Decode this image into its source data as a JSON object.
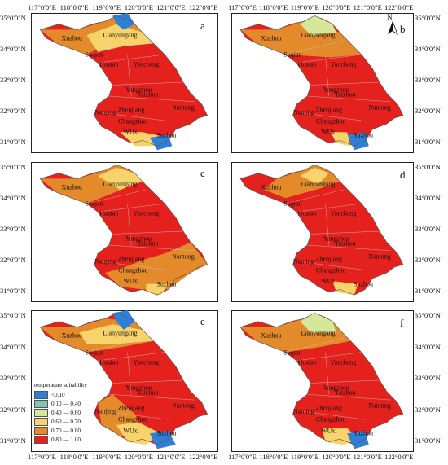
{
  "panels": [
    {
      "label": "a"
    },
    {
      "label": "b"
    },
    {
      "label": "c"
    },
    {
      "label": "d"
    },
    {
      "label": "e"
    },
    {
      "label": "f"
    }
  ],
  "lon_ticks": [
    "117°0'0\"E",
    "118°0'0\"E",
    "119°0'0\"E",
    "120°0'0\"E",
    "121°0'0\"E",
    "122°0'0\"E"
  ],
  "lat_ticks": [
    "35°0'0\"N",
    "34°0'0\"N",
    "33°0'0\"N",
    "32°0'0\"N",
    "31°0'0\"N"
  ],
  "cities": [
    "Xuzhou",
    "Lianyungang",
    "Suqian",
    "Huaian",
    "Yancheng",
    "Yangzhou",
    "Taizhou",
    "Nantong",
    "Nanjing",
    "Zhenjiang",
    "Changzhou",
    "WUxi",
    "Suzhou"
  ],
  "panel_city_overrides": {
    "d": {
      "Nantong": "Nantong"
    },
    "e": {
      "Suqian": "Suqian",
      "Wuxi": "WUxi"
    }
  },
  "compass_label": "N",
  "legend": {
    "title": "temperature suitability",
    "items": [
      {
        "label": "<0.10",
        "color": "#2f7fd6"
      },
      {
        "label": "0.10 — 0.40",
        "color": "#7fc6b4"
      },
      {
        "label": "0.40 — 0.60",
        "color": "#d5e89a"
      },
      {
        "label": "0.60 — 0.70",
        "color": "#f7d36b"
      },
      {
        "label": "0.70 — 0.80",
        "color": "#e38a2a"
      },
      {
        "label": "0.80 — 1.00",
        "color": "#e5211d"
      }
    ]
  }
}
